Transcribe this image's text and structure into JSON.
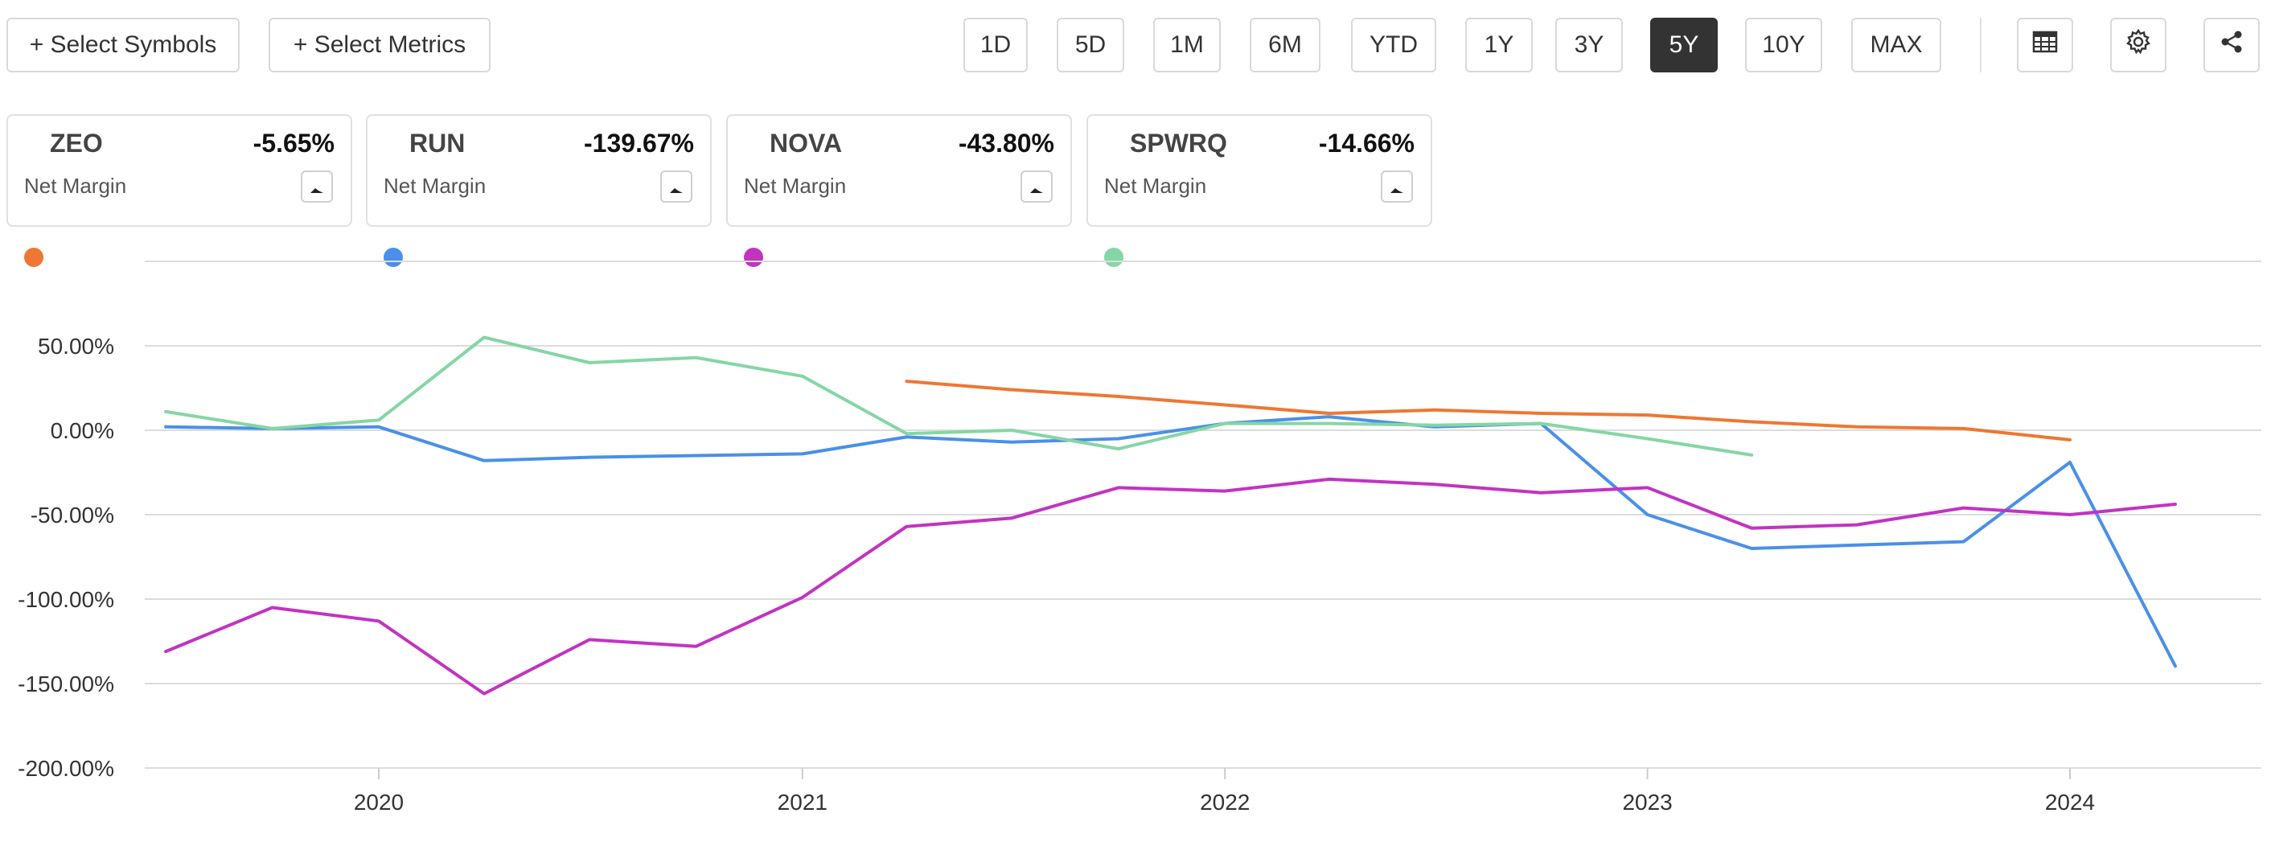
{
  "toolbar": {
    "select_symbols": "+ Select Symbols",
    "select_metrics": "+ Select Metrics",
    "ranges": [
      "1D",
      "5D",
      "1M",
      "6M",
      "YTD",
      "1Y",
      "3Y",
      "5Y",
      "10Y",
      "MAX"
    ],
    "active_range": "5Y",
    "icons": [
      "table-icon",
      "gear-icon",
      "share-icon"
    ]
  },
  "cards": [
    {
      "symbol": "ZEO",
      "value": "-5.65%",
      "metric": "Net Margin",
      "color": "#ee7733"
    },
    {
      "symbol": "RUN",
      "value": "-139.67%",
      "metric": "Net Margin",
      "color": "#4a90e8"
    },
    {
      "symbol": "NOVA",
      "value": "-43.80%",
      "metric": "Net Margin",
      "color": "#c233c2"
    },
    {
      "symbol": "SPWRQ",
      "value": "-14.66%",
      "metric": "Net Margin",
      "color": "#85d6a5"
    }
  ],
  "chart_data": {
    "type": "line",
    "title": "",
    "xlabel": "",
    "ylabel": "",
    "x_ticks": [
      "2020",
      "2021",
      "2022",
      "2023",
      "2024"
    ],
    "y_ticks": [
      "50.00%",
      "0.00%",
      "-50.00%",
      "-100.00%",
      "-150.00%",
      "-200.00%"
    ],
    "ylim": [
      -200,
      100
    ],
    "grid": true,
    "series": [
      {
        "name": "ZEO",
        "color": "#ee7733",
        "points": [
          [
            "2021-04-01",
            29
          ],
          [
            "2021-07-01",
            24
          ],
          [
            "2021-10-01",
            20
          ],
          [
            "2022-01-01",
            15
          ],
          [
            "2022-04-01",
            10
          ],
          [
            "2022-07-01",
            12
          ],
          [
            "2022-10-01",
            10
          ],
          [
            "2023-01-01",
            9
          ],
          [
            "2023-04-01",
            5
          ],
          [
            "2023-07-01",
            2
          ],
          [
            "2023-10-01",
            1
          ],
          [
            "2024-01-01",
            -5.65
          ]
        ]
      },
      {
        "name": "RUN",
        "color": "#4a90e8",
        "points": [
          [
            "2019-07-01",
            2
          ],
          [
            "2019-10-01",
            1
          ],
          [
            "2020-01-01",
            2
          ],
          [
            "2020-04-01",
            -18
          ],
          [
            "2020-07-01",
            -16
          ],
          [
            "2020-10-01",
            -15
          ],
          [
            "2021-01-01",
            -14
          ],
          [
            "2021-04-01",
            -4
          ],
          [
            "2021-07-01",
            -7
          ],
          [
            "2021-10-01",
            -5
          ],
          [
            "2022-01-01",
            4
          ],
          [
            "2022-04-01",
            8
          ],
          [
            "2022-07-01",
            2
          ],
          [
            "2022-10-01",
            4
          ],
          [
            "2023-01-01",
            -50
          ],
          [
            "2023-04-01",
            -70
          ],
          [
            "2023-07-01",
            -68
          ],
          [
            "2023-10-01",
            -66
          ],
          [
            "2024-01-01",
            -19
          ],
          [
            "2024-04-01",
            -139.67
          ]
        ]
      },
      {
        "name": "NOVA",
        "color": "#c233c2",
        "points": [
          [
            "2019-07-01",
            -131
          ],
          [
            "2019-10-01",
            -105
          ],
          [
            "2020-01-01",
            -113
          ],
          [
            "2020-04-01",
            -156
          ],
          [
            "2020-07-01",
            -124
          ],
          [
            "2020-10-01",
            -128
          ],
          [
            "2021-01-01",
            -99
          ],
          [
            "2021-04-01",
            -57
          ],
          [
            "2021-07-01",
            -52
          ],
          [
            "2021-10-01",
            -34
          ],
          [
            "2022-01-01",
            -36
          ],
          [
            "2022-04-01",
            -29
          ],
          [
            "2022-07-01",
            -32
          ],
          [
            "2022-10-01",
            -37
          ],
          [
            "2023-01-01",
            -34
          ],
          [
            "2023-04-01",
            -58
          ],
          [
            "2023-07-01",
            -56
          ],
          [
            "2023-10-01",
            -46
          ],
          [
            "2024-01-01",
            -50
          ],
          [
            "2024-04-01",
            -43.8
          ]
        ]
      },
      {
        "name": "SPWRQ",
        "color": "#85d6a5",
        "points": [
          [
            "2019-07-01",
            11
          ],
          [
            "2019-10-01",
            1
          ],
          [
            "2020-01-01",
            6
          ],
          [
            "2020-04-01",
            55
          ],
          [
            "2020-07-01",
            40
          ],
          [
            "2020-10-01",
            43
          ],
          [
            "2021-01-01",
            32
          ],
          [
            "2021-04-01",
            -2
          ],
          [
            "2021-07-01",
            0
          ],
          [
            "2021-10-01",
            -11
          ],
          [
            "2022-01-01",
            4
          ],
          [
            "2022-04-01",
            4
          ],
          [
            "2022-07-01",
            3
          ],
          [
            "2022-10-01",
            4
          ],
          [
            "2023-01-01",
            -5
          ],
          [
            "2023-04-01",
            -14.66
          ]
        ]
      }
    ]
  }
}
